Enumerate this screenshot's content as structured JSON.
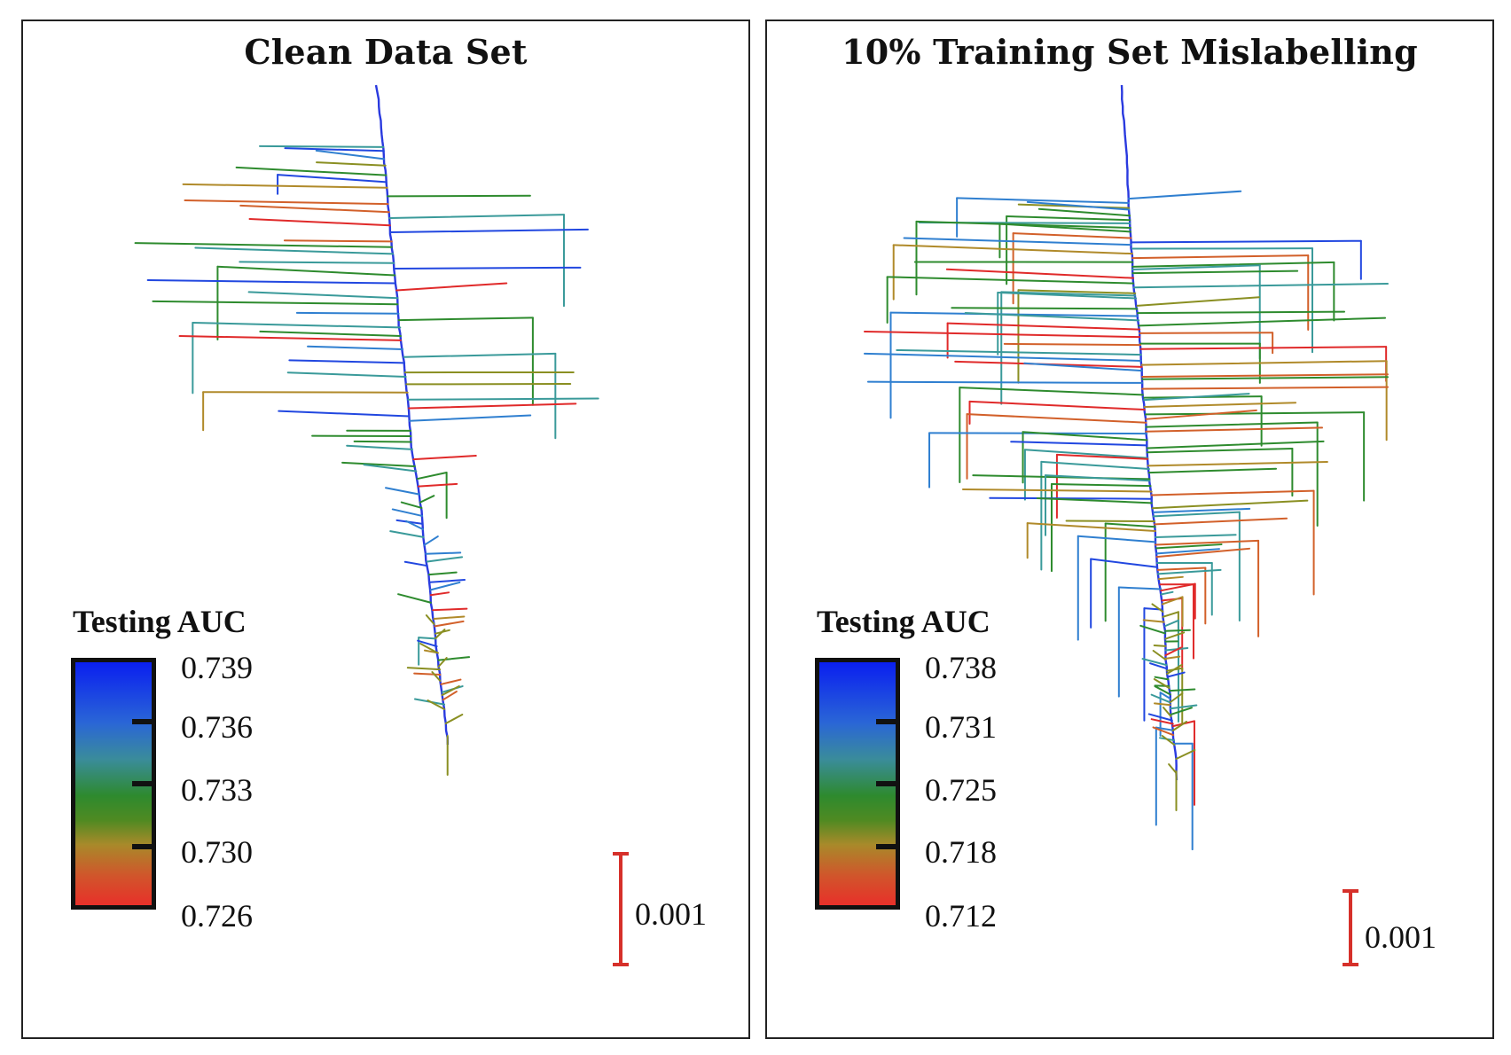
{
  "figure": {
    "panels": [
      {
        "title": "Clean Data Set",
        "legend": {
          "title": "Testing AUC",
          "ticks": [
            "0.739",
            "0.736",
            "0.733",
            "0.730",
            "0.726"
          ]
        },
        "scale_bar": {
          "label": "0.001"
        }
      },
      {
        "title": "10% Training Set Mislabelling",
        "legend": {
          "title": "Testing AUC",
          "ticks": [
            "0.738",
            "0.731",
            "0.725",
            "0.718",
            "0.712"
          ]
        },
        "scale_bar": {
          "label": "0.001"
        }
      }
    ]
  },
  "colors": {
    "blue": "#2147e0",
    "lightblue": "#2f7fd0",
    "teal": "#3a9a9a",
    "green": "#2e8b2e",
    "olive": "#8a8f22",
    "gold": "#b08a2a",
    "orange": "#d2602a",
    "red": "#e02a2a",
    "trunk": "#2a3adf",
    "scale": "#d6302a"
  }
}
